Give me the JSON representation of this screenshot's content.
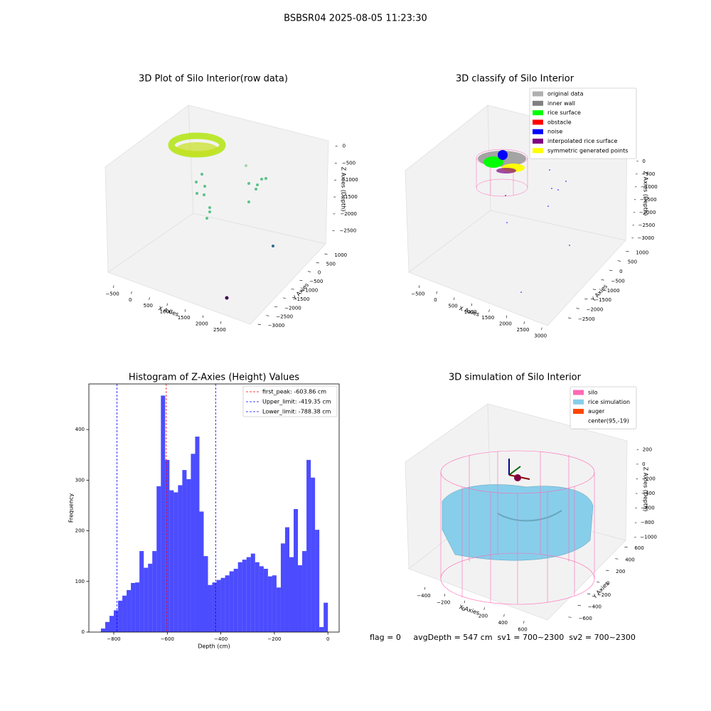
{
  "title": "BSBSR04 2025-08-05 11:23:30",
  "footer": "flag = 0     avgDepth = 547 cm  sv1 = 700~2300  sv2 = 700~2300",
  "chart_data": [
    {
      "type": "scatter3d",
      "title": "3D Plot of Silo Interior(row data)",
      "xlabel": "X Axies",
      "ylabel": "Y Axies",
      "zlabel": "Z Axies (Depth)",
      "xlim": [
        -700,
        2800
      ],
      "ylim": [
        -3200,
        1200
      ],
      "zlim": [
        -2800,
        200
      ],
      "xticks": [
        {
          "value": -500,
          "label": "−500"
        },
        0,
        500,
        1000,
        1500,
        2000,
        2500
      ],
      "yticks": [
        1000,
        500,
        0,
        {
          "value": -500,
          "label": "−500"
        },
        {
          "value": -1000,
          "label": "−1000"
        },
        {
          "value": -1500,
          "label": "−1500"
        },
        {
          "value": -2000,
          "label": "−2000"
        },
        {
          "value": -2500,
          "label": "−2500"
        },
        {
          "value": -3000,
          "label": "−3000"
        }
      ],
      "zticks": [
        0,
        {
          "value": -500,
          "label": "−500"
        },
        {
          "value": -1000,
          "label": "−1000"
        },
        {
          "value": -1500,
          "label": "−1500"
        },
        {
          "value": -2000,
          "label": "−2000"
        },
        {
          "value": -2500,
          "label": "−2500"
        }
      ]
    },
    {
      "type": "scatter3d",
      "title": "3D classify of Silo Interior",
      "xlabel": "X Axies",
      "ylabel": "Y Axies",
      "zlabel": "Z Axies (Depth)",
      "legend": [
        {
          "name": "original data",
          "color": "#b0b0b0"
        },
        {
          "name": "inner wall",
          "color": "#808080"
        },
        {
          "name": "rice surface",
          "color": "#00ff00"
        },
        {
          "name": "obstacle",
          "color": "#ff0000"
        },
        {
          "name": "noise",
          "color": "#0000ff"
        },
        {
          "name": "interpolated rice surface",
          "color": "#800080"
        },
        {
          "name": "symmetric generated points",
          "color": "#ffff00"
        }
      ],
      "xlim": [
        -700,
        3200
      ],
      "ylim": [
        -2800,
        1200
      ],
      "zlim": [
        -3200,
        300
      ],
      "xticks": [
        {
          "value": -500,
          "label": "−500"
        },
        0,
        500,
        1000,
        1500,
        2000,
        2500,
        3000
      ],
      "yticks": [
        1000,
        500,
        0,
        {
          "value": -500,
          "label": "−500"
        },
        {
          "value": -1000,
          "label": "−1000"
        },
        {
          "value": -1500,
          "label": "−1500"
        },
        {
          "value": -2000,
          "label": "−2000"
        },
        {
          "value": -2500,
          "label": "−2500"
        }
      ],
      "zticks": [
        0,
        {
          "value": -500,
          "label": "−500"
        },
        {
          "value": -1000,
          "label": "−1000"
        },
        {
          "value": -1500,
          "label": "−1500"
        },
        {
          "value": -2000,
          "label": "−2000"
        },
        {
          "value": -2500,
          "label": "−2500"
        },
        {
          "value": -3000,
          "label": "−3000"
        }
      ]
    },
    {
      "type": "histogram",
      "title": "Histogram of Z-Axies (Height) Values",
      "xlabel": "Depth (cm)",
      "ylabel": "Frequency",
      "color": "#0000ff",
      "bins": [
        -848,
        -832,
        -816,
        -800,
        -784,
        -768,
        -752,
        -736,
        -720,
        -704,
        -688,
        -672,
        -656,
        -640,
        -624,
        -608,
        -592,
        -576,
        -560,
        -544,
        -528,
        -512,
        -496,
        -480,
        -464,
        -448,
        -432,
        -416,
        -400,
        -384,
        -368,
        -352,
        -336,
        -320,
        -304,
        -288,
        -272,
        -256,
        -240,
        -224,
        -208,
        -192,
        -176,
        -160,
        -144,
        -128,
        -112,
        -96,
        -80,
        -64,
        -48,
        -32,
        -16,
        0
      ],
      "values": [
        7,
        20,
        32,
        43,
        62,
        72,
        83,
        97,
        98,
        160,
        127,
        135,
        160,
        288,
        467,
        340,
        280,
        276,
        290,
        320,
        302,
        352,
        386,
        238,
        150,
        93,
        98,
        103,
        107,
        112,
        120,
        125,
        138,
        143,
        148,
        155,
        138,
        130,
        125,
        110,
        112,
        88,
        175,
        207,
        148,
        243,
        132,
        160,
        340,
        305,
        202,
        10,
        58
      ],
      "xlim": [
        -893,
        42
      ],
      "ylim": [
        0,
        490
      ],
      "xticks": [
        {
          "value": -800,
          "label": "−800"
        },
        {
          "value": -600,
          "label": "−600"
        },
        {
          "value": -400,
          "label": "−400"
        },
        {
          "value": -200,
          "label": "−200"
        },
        0
      ],
      "yticks": [
        0,
        100,
        200,
        300,
        400
      ],
      "lines": [
        {
          "name": "first_peak: -603.86 cm",
          "value": -603.86,
          "color": "#ff0000"
        },
        {
          "name": "Upper_limit: -419.35 cm",
          "value": -419.35,
          "color": "#0000ff"
        },
        {
          "name": "Lower_limit: -788.38 cm",
          "value": -788.38,
          "color": "#0000ff"
        }
      ],
      "legend": "upper right"
    },
    {
      "type": "surface3d",
      "title": "3D simulation of Silo Interior",
      "xlabel": "X Axies",
      "ylabel": "Y Axies",
      "zlabel": "Z Axies (Depth)",
      "legend": [
        {
          "name": "silo",
          "color": "#ff69b4"
        },
        {
          "name": "rice simulation",
          "color": "#87ceeb"
        },
        {
          "name": "auger",
          "color": "#ff4500"
        },
        {
          "name": "center(95,-19)",
          "color": "#ffffff"
        }
      ],
      "xlim": [
        -500,
        700
      ],
      "ylim": [
        -700,
        700
      ],
      "zlim": [
        -1100,
        300
      ],
      "xticks": [
        {
          "value": -400,
          "label": "−400"
        },
        {
          "value": -200,
          "label": "−200"
        },
        0,
        200,
        400,
        600
      ],
      "yticks": [
        600,
        400,
        200,
        0,
        {
          "value": -200,
          "label": "−200"
        },
        {
          "value": -400,
          "label": "−400"
        },
        {
          "value": -600,
          "label": "−600"
        }
      ],
      "zticks": [
        200,
        0,
        {
          "value": -200,
          "label": "−200"
        },
        {
          "value": -400,
          "label": "−400"
        },
        {
          "value": -600,
          "label": "−600"
        },
        {
          "value": -800,
          "label": "−800"
        },
        {
          "value": -1000,
          "label": "−1000"
        }
      ]
    }
  ]
}
